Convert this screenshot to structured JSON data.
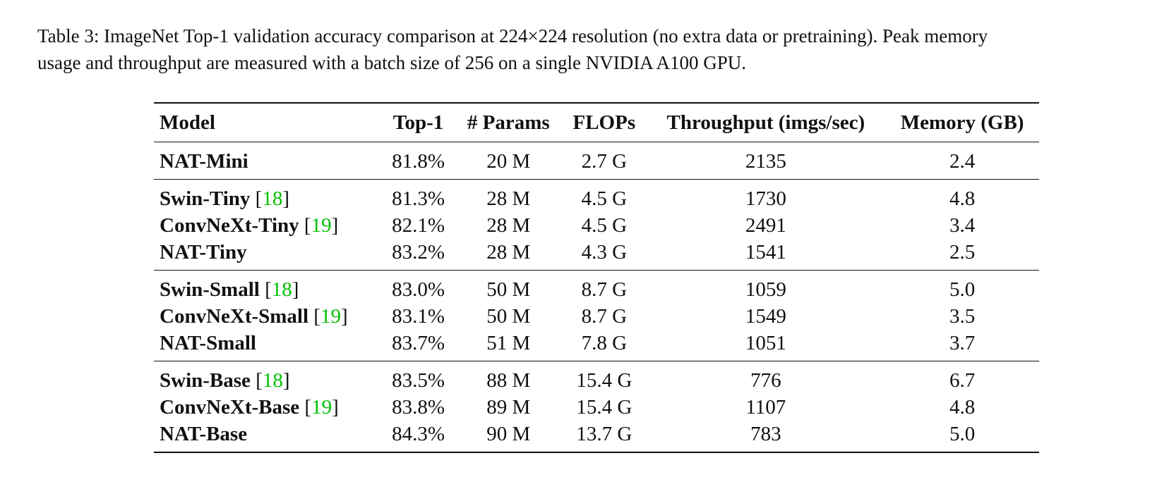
{
  "caption": {
    "line1": "Table 3: ImageNet Top-1 validation accuracy comparison at 224×224 resolution (no extra data or pretraining). Peak memory",
    "line2": "usage and throughput are measured with a batch size of 256 on a single NVIDIA A100 GPU."
  },
  "table": {
    "headers": [
      "Model",
      "Top-1",
      "# Params",
      "FLOPs",
      "Throughput (imgs/sec)",
      "Memory (GB)"
    ],
    "groups": [
      [
        {
          "model": "NAT-Mini",
          "cite": "",
          "top1": "81.8%",
          "params": "20 M",
          "flops": "2.7 G",
          "throughput": "2135",
          "memory": "2.4"
        }
      ],
      [
        {
          "model": "Swin-Tiny",
          "cite": "18",
          "top1": "81.3%",
          "params": "28 M",
          "flops": "4.5 G",
          "throughput": "1730",
          "memory": "4.8"
        },
        {
          "model": "ConvNeXt-Tiny",
          "cite": "19",
          "top1": "82.1%",
          "params": "28 M",
          "flops": "4.5 G",
          "throughput": "2491",
          "memory": "3.4"
        },
        {
          "model": "NAT-Tiny",
          "cite": "",
          "top1": "83.2%",
          "params": "28 M",
          "flops": "4.3 G",
          "throughput": "1541",
          "memory": "2.5"
        }
      ],
      [
        {
          "model": "Swin-Small",
          "cite": "18",
          "top1": "83.0%",
          "params": "50 M",
          "flops": "8.7 G",
          "throughput": "1059",
          "memory": "5.0"
        },
        {
          "model": "ConvNeXt-Small",
          "cite": "19",
          "top1": "83.1%",
          "params": "50 M",
          "flops": "8.7 G",
          "throughput": "1549",
          "memory": "3.5"
        },
        {
          "model": "NAT-Small",
          "cite": "",
          "top1": "83.7%",
          "params": "51 M",
          "flops": "7.8 G",
          "throughput": "1051",
          "memory": "3.7"
        }
      ],
      [
        {
          "model": "Swin-Base",
          "cite": "18",
          "top1": "83.5%",
          "params": "88 M",
          "flops": "15.4 G",
          "throughput": "776",
          "memory": "6.7"
        },
        {
          "model": "ConvNeXt-Base",
          "cite": "19",
          "top1": "83.8%",
          "params": "89 M",
          "flops": "15.4 G",
          "throughput": "1107",
          "memory": "4.8"
        },
        {
          "model": "NAT-Base",
          "cite": "",
          "top1": "84.3%",
          "params": "90 M",
          "flops": "13.7 G",
          "throughput": "783",
          "memory": "5.0"
        }
      ]
    ]
  }
}
